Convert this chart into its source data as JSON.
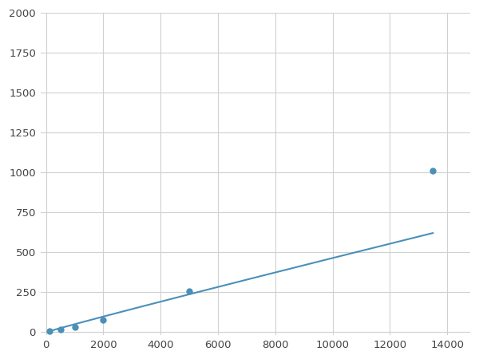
{
  "x": [
    62.5,
    125,
    500,
    1000,
    2000,
    5000,
    13500
  ],
  "y": [
    5,
    8,
    18,
    30,
    75,
    255,
    1010
  ],
  "marker_x": [
    125,
    500,
    1000,
    2000,
    5000,
    13500
  ],
  "marker_y": [
    8,
    18,
    30,
    75,
    255,
    1010
  ],
  "line_color": "#4a90b8",
  "marker_color": "#4a90b8",
  "marker_size": 6,
  "xlim": [
    -200,
    14800
  ],
  "ylim": [
    -20,
    2000
  ],
  "xticks": [
    0,
    2000,
    4000,
    6000,
    8000,
    10000,
    12000,
    14000
  ],
  "yticks": [
    0,
    250,
    500,
    750,
    1000,
    1250,
    1500,
    1750,
    2000
  ],
  "grid_color": "#d0d0d0",
  "background_color": "#ffffff",
  "tick_label_color": "#444444",
  "tick_fontsize": 9.5
}
